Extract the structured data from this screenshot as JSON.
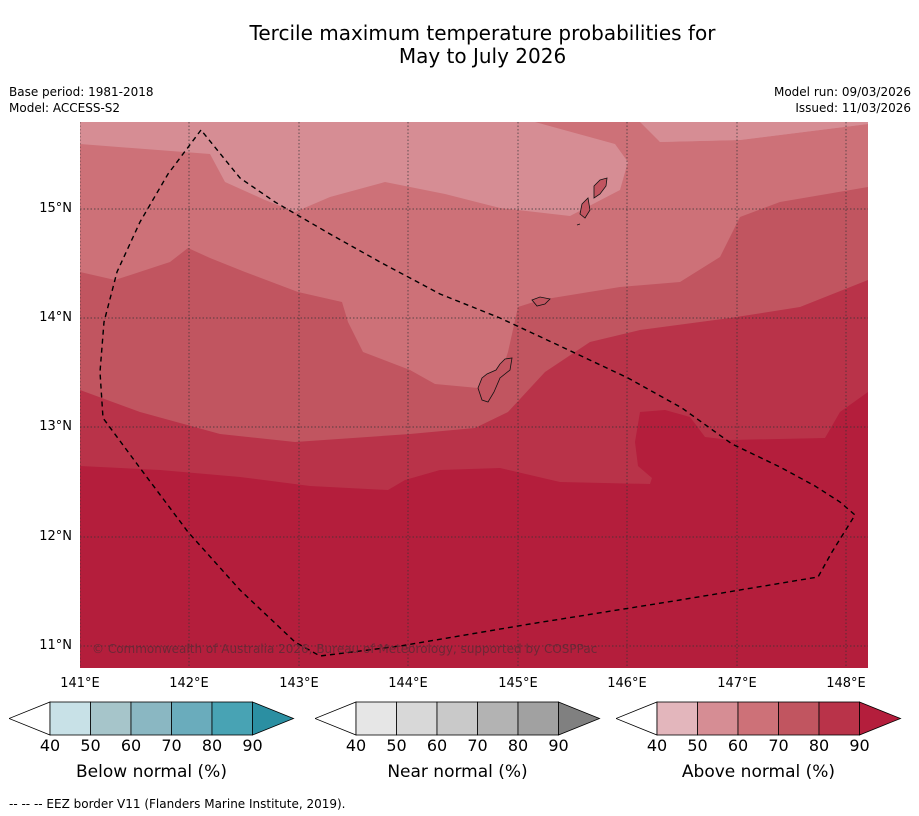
{
  "title_line1": "Tercile maximum temperature probabilities for",
  "title_line2": "May to July 2026",
  "meta_left": {
    "base_period": "Base period: 1981-2018",
    "model": "Model: ACCESS-S2"
  },
  "meta_right": {
    "model_run": "Model run: 09/03/2026",
    "issued": "Issued: 11/03/2026"
  },
  "lat_labels": [
    "15°N",
    "14°N",
    "13°N",
    "12°N",
    "11°N"
  ],
  "lon_labels": [
    "141°E",
    "142°E",
    "143°E",
    "144°E",
    "145°E",
    "146°E",
    "147°E",
    "148°E"
  ],
  "copyright": "© Commonwealth of Australia 2026, Bureau of Meteorology, supported by COSPPac",
  "legends": [
    {
      "title": "Below normal (%)",
      "ticks": [
        "40",
        "50",
        "60",
        "70",
        "80",
        "90"
      ],
      "colors": [
        "#ffffff",
        "#c8e1e7",
        "#a6c5ca",
        "#8ab7c2",
        "#6aacbc",
        "#48a3b4",
        "#2b8fa2"
      ]
    },
    {
      "title": "Near normal (%)",
      "ticks": [
        "40",
        "50",
        "60",
        "70",
        "80",
        "90"
      ],
      "colors": [
        "#ffffff",
        "#e6e6e6",
        "#d8d8d8",
        "#c9c9c9",
        "#b3b3b3",
        "#a1a1a1",
        "#808080"
      ]
    },
    {
      "title": "Above normal (%)",
      "ticks": [
        "40",
        "50",
        "60",
        "70",
        "80",
        "90"
      ],
      "colors": [
        "#ffffff",
        "#e3b6bc",
        "#d68d94",
        "#cd7178",
        "#c15560",
        "#b93349",
        "#b41e3c"
      ]
    }
  ],
  "footnote": "-- -- -- EEZ border V11 (Flanders Marine Institute, 2019)."
}
